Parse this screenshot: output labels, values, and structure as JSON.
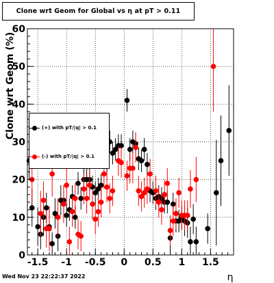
{
  "title": "Clone wrt Geom for Global vs   η at pT > 0.11",
  "timestamp": "Wed Nov 23 22:22:37 2022",
  "chart_data": {
    "type": "scatter",
    "xlabel": "η",
    "ylabel": "Clone wrt Geom (%)",
    "xlim": [
      -1.68,
      1.9
    ],
    "ylim": [
      0,
      60
    ],
    "xticks": [
      "-1.5",
      "-1",
      "-0.5",
      "0",
      "0.5",
      "1",
      "1.5"
    ],
    "xtick_values": [
      -1.5,
      -1,
      -0.5,
      0,
      0.5,
      1,
      1.5
    ],
    "yticks": [
      "0",
      "10",
      "20",
      "30",
      "40",
      "50",
      "60"
    ],
    "ytick_values": [
      0,
      10,
      20,
      30,
      40,
      50,
      60
    ],
    "grid": true,
    "legend_position": "left",
    "series": [
      {
        "name": "(+) with pT/|q| > 0.1",
        "color": "#000000",
        "points": [
          [
            -1.65,
            25.0,
            5
          ],
          [
            -1.6,
            12.5,
            5
          ],
          [
            -1.5,
            7.5,
            5
          ],
          [
            -1.45,
            5.5,
            4
          ],
          [
            -1.4,
            10.0,
            5
          ],
          [
            -1.35,
            12.5,
            4
          ],
          [
            -1.3,
            7.5,
            5
          ],
          [
            -1.25,
            3.0,
            3
          ],
          [
            -1.2,
            11.0,
            4
          ],
          [
            -1.15,
            5.0,
            4
          ],
          [
            -1.1,
            14.5,
            4
          ],
          [
            -1.05,
            14.5,
            4
          ],
          [
            -1.0,
            10.5,
            3
          ],
          [
            -0.95,
            12.0,
            3
          ],
          [
            -0.9,
            15.5,
            3
          ],
          [
            -0.85,
            10.0,
            3
          ],
          [
            -0.8,
            19.0,
            3
          ],
          [
            -0.75,
            15.0,
            3
          ],
          [
            -0.7,
            20.0,
            3
          ],
          [
            -0.65,
            20.0,
            3
          ],
          [
            -0.6,
            20.0,
            3
          ],
          [
            -0.55,
            18.0,
            3
          ],
          [
            -0.5,
            16.5,
            3
          ],
          [
            -0.45,
            17.5,
            3
          ],
          [
            -0.4,
            18.5,
            3
          ],
          [
            -0.3,
            24.0,
            3
          ],
          [
            -0.25,
            30.0,
            3
          ],
          [
            -0.2,
            27.0,
            3
          ],
          [
            -0.15,
            28.0,
            3
          ],
          [
            -0.1,
            29.0,
            3
          ],
          [
            -0.05,
            29.0,
            3
          ],
          [
            0.05,
            41.0,
            3
          ],
          [
            0.1,
            28.0,
            3
          ],
          [
            0.15,
            30.0,
            3
          ],
          [
            0.2,
            29.5,
            3
          ],
          [
            0.25,
            25.5,
            3
          ],
          [
            0.3,
            25.0,
            3
          ],
          [
            0.35,
            28.0,
            3
          ],
          [
            0.4,
            24.0,
            3
          ],
          [
            0.45,
            17.0,
            3
          ],
          [
            0.5,
            16.5,
            3
          ],
          [
            0.55,
            15.0,
            3
          ],
          [
            0.6,
            15.5,
            3
          ],
          [
            0.65,
            15.0,
            3
          ],
          [
            0.7,
            14.0,
            3
          ],
          [
            0.75,
            14.0,
            3
          ],
          [
            0.8,
            4.5,
            4
          ],
          [
            0.85,
            13.5,
            3
          ],
          [
            0.9,
            9.0,
            3
          ],
          [
            0.95,
            9.0,
            3
          ],
          [
            1.0,
            10.0,
            3
          ],
          [
            1.05,
            9.0,
            4
          ],
          [
            1.1,
            8.5,
            4
          ],
          [
            1.15,
            3.5,
            4
          ],
          [
            1.2,
            9.5,
            4
          ],
          [
            1.25,
            3.5,
            4
          ],
          [
            1.45,
            7.0,
            4
          ],
          [
            1.6,
            16.5,
            14
          ],
          [
            1.68,
            25.0,
            12
          ],
          [
            1.82,
            33.0,
            12
          ]
        ]
      },
      {
        "name": "(-) with pT/|q| > 0.1",
        "color": "#ff0000",
        "points": [
          [
            -1.6,
            20.0,
            6
          ],
          [
            -1.45,
            11.0,
            6
          ],
          [
            -1.4,
            14.5,
            5
          ],
          [
            -1.35,
            7.0,
            5
          ],
          [
            -1.3,
            7.0,
            6
          ],
          [
            -1.25,
            21.5,
            6
          ],
          [
            -1.15,
            10.0,
            5
          ],
          [
            -1.05,
            13.5,
            5
          ],
          [
            -1.0,
            18.5,
            5
          ],
          [
            -0.95,
            3.5,
            4
          ],
          [
            -0.9,
            11.5,
            4
          ],
          [
            -0.85,
            15.0,
            4
          ],
          [
            -0.8,
            5.5,
            4
          ],
          [
            -0.75,
            5.0,
            4
          ],
          [
            -0.7,
            17.5,
            4
          ],
          [
            -0.65,
            15.0,
            4
          ],
          [
            -0.6,
            18.5,
            4
          ],
          [
            -0.55,
            13.5,
            4
          ],
          [
            -0.5,
            9.5,
            4
          ],
          [
            -0.45,
            11.5,
            4
          ],
          [
            -0.4,
            14.0,
            4
          ],
          [
            -0.35,
            21.5,
            4
          ],
          [
            -0.3,
            18.0,
            4
          ],
          [
            -0.25,
            15.0,
            4
          ],
          [
            -0.2,
            17.0,
            4
          ],
          [
            -0.1,
            25.0,
            4
          ],
          [
            -0.05,
            24.5,
            4
          ],
          [
            0.05,
            21.0,
            4
          ],
          [
            0.1,
            23.0,
            4
          ],
          [
            0.15,
            23.0,
            4
          ],
          [
            0.2,
            28.5,
            4
          ],
          [
            0.25,
            17.0,
            4
          ],
          [
            0.3,
            15.5,
            4
          ],
          [
            0.35,
            16.5,
            4
          ],
          [
            0.4,
            17.5,
            4
          ],
          [
            0.45,
            21.5,
            4
          ],
          [
            0.55,
            17.0,
            4
          ],
          [
            0.6,
            14.0,
            4
          ],
          [
            0.65,
            12.0,
            4
          ],
          [
            0.7,
            16.0,
            4
          ],
          [
            0.75,
            19.0,
            4
          ],
          [
            0.8,
            6.5,
            4
          ],
          [
            0.85,
            9.0,
            4
          ],
          [
            0.9,
            11.0,
            4
          ],
          [
            0.95,
            16.5,
            4
          ],
          [
            1.0,
            10.5,
            4
          ],
          [
            1.05,
            10.5,
            4
          ],
          [
            1.1,
            10.5,
            4
          ],
          [
            1.15,
            17.5,
            5
          ],
          [
            1.25,
            20.0,
            6
          ],
          [
            1.55,
            50.0,
            12
          ]
        ]
      }
    ]
  }
}
